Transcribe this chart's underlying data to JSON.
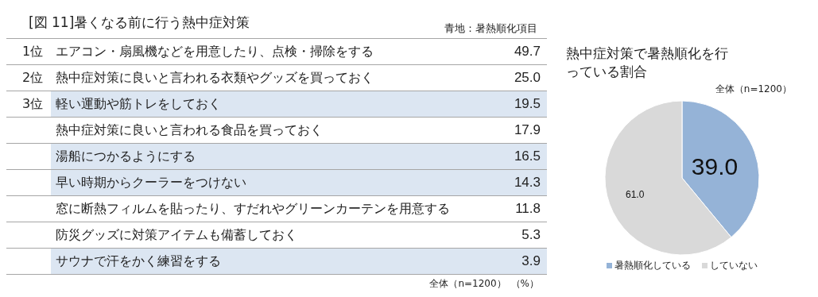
{
  "chart_data": [
    {
      "type": "other",
      "title": "[図 11]暑くなる前に行う熱中症対策",
      "categories": [
        "エアコン・扇風機などを用意したり、点検・掃除をする",
        "熱中症対策に良いと言われる衣類やグッズを買っておく",
        "軽い運動や筋トレをしておく",
        "熱中症対策に良いと言われる食品を買っておく",
        "湯船につかるようにする",
        "早い時期からクーラーをつけない",
        "窓に断熱フィルムを貼ったり、すだれやグリーンカーテンを用意する",
        "防災グッズに対策アイテムも備蓄しておく",
        "サウナで汗をかく練習をする"
      ],
      "values": [
        49.7,
        25.0,
        19.5,
        17.9,
        16.5,
        14.3,
        11.8,
        5.3,
        3.9
      ],
      "value_labels": [
        "49.7",
        "25.0",
        "19.5",
        "17.9",
        "16.5",
        "14.3",
        "11.8",
        "5.3",
        "3.9"
      ],
      "colors": [
        "#ffffff",
        "#ffffff",
        "#dce6f2",
        "#ffffff",
        "#dce6f2",
        "#dce6f2",
        "#ffffff",
        "#ffffff",
        "#dce6f2"
      ],
      "annotations": [
        {
          "text": "1位",
          "y": "エアコン・扇風機などを用意したり、点検・掃除をする"
        },
        {
          "text": "2位",
          "y": "熱中症対策に良いと言われる衣類やグッズを買っておく"
        },
        {
          "text": "3位",
          "y": "軽い運動や筋トレをしておく"
        },
        "青地：暑熱順化項目",
        "全体（n=1200）",
        "（%）"
      ]
    },
    {
      "type": "pie",
      "title": "熱中症対策で暑熱順化を行っている割合",
      "subtitle": "全体（n=1200）",
      "categories": [
        "暑熱順化している",
        "していない"
      ],
      "values": [
        39.0,
        61.0
      ],
      "value_labels": [
        "39.0",
        "61.0"
      ],
      "colors": [
        "#95b3d7",
        "#d9d9d9"
      ],
      "legend": "bottom"
    }
  ]
}
